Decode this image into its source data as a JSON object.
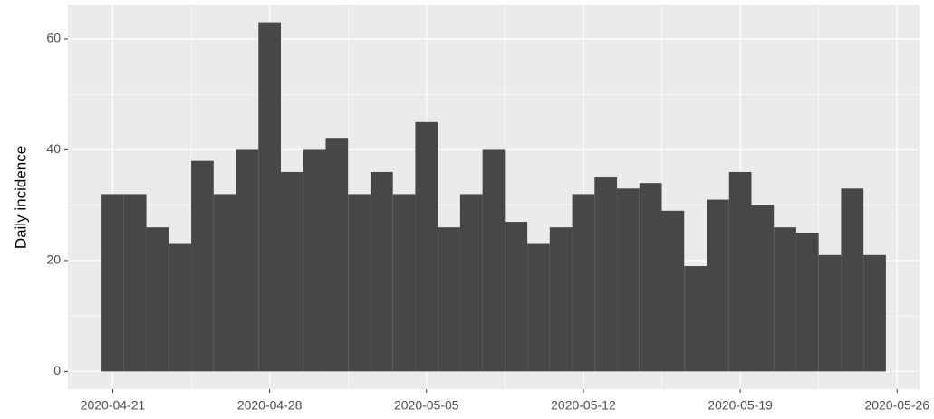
{
  "chart_data": {
    "type": "bar",
    "y_label": "Daily incidence",
    "x": [
      "2020-04-21",
      "2020-04-22",
      "2020-04-23",
      "2020-04-24",
      "2020-04-25",
      "2020-04-26",
      "2020-04-27",
      "2020-04-28",
      "2020-04-29",
      "2020-04-30",
      "2020-05-01",
      "2020-05-02",
      "2020-05-03",
      "2020-05-04",
      "2020-05-05",
      "2020-05-06",
      "2020-05-07",
      "2020-05-08",
      "2020-05-09",
      "2020-05-10",
      "2020-05-11",
      "2020-05-12",
      "2020-05-13",
      "2020-05-14",
      "2020-05-15",
      "2020-05-16",
      "2020-05-17",
      "2020-05-18",
      "2020-05-19",
      "2020-05-20",
      "2020-05-21",
      "2020-05-22",
      "2020-05-23",
      "2020-05-24",
      "2020-05-25"
    ],
    "values": [
      32,
      32,
      26,
      23,
      38,
      32,
      40,
      63,
      36,
      40,
      42,
      32,
      36,
      32,
      45,
      26,
      32,
      40,
      27,
      23,
      26,
      32,
      35,
      33,
      34,
      29,
      19,
      31,
      36,
      30,
      26,
      25,
      21,
      33,
      21
    ],
    "color": "#474747",
    "xlim": [
      "2020-04-19",
      "2020-05-27"
    ],
    "xticks": [
      "2020-04-21",
      "2020-04-28",
      "2020-05-05",
      "2020-05-12",
      "2020-05-19",
      "2020-05-26"
    ],
    "ylim": [
      -3.2,
      66.2
    ],
    "yticks": [
      0,
      20,
      40,
      60
    ],
    "grid": true,
    "panel_color": "#ebebeb"
  }
}
